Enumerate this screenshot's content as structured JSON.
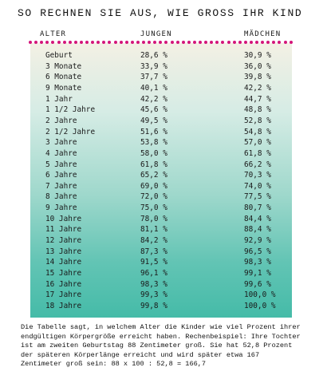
{
  "title": "SO RECHNEN SIE AUS, WIE GROSS IHR KIND",
  "headers": {
    "age": "ALTER",
    "boys": "JUNGEN",
    "girls": "MÄDCHEN"
  },
  "accent_color": "#d4157a",
  "rows": [
    {
      "age": "Geburt",
      "boys": "28,6 %",
      "girls": "30,9 %"
    },
    {
      "age": "3 Monate",
      "boys": "33,9 %",
      "girls": "36,0 %"
    },
    {
      "age": "6 Monate",
      "boys": "37,7 %",
      "girls": "39,8 %"
    },
    {
      "age": "9 Monate",
      "boys": "40,1 %",
      "girls": "42,2 %"
    },
    {
      "age": "1 Jahr",
      "boys": "42,2 %",
      "girls": "44,7 %"
    },
    {
      "age": "1 1/2 Jahre",
      "boys": "45,6 %",
      "girls": "48,8 %"
    },
    {
      "age": "2 Jahre",
      "boys": "49,5 %",
      "girls": "52,8 %"
    },
    {
      "age": "2 1/2 Jahre",
      "boys": "51,6 %",
      "girls": "54,8 %"
    },
    {
      "age": "3 Jahre",
      "boys": "53,8 %",
      "girls": "57,0 %"
    },
    {
      "age": "4 Jahre",
      "boys": "58,0 %",
      "girls": "61,8 %"
    },
    {
      "age": "5 Jahre",
      "boys": "61,8 %",
      "girls": "66,2 %"
    },
    {
      "age": "6 Jahre",
      "boys": "65,2 %",
      "girls": "70,3 %"
    },
    {
      "age": "7 Jahre",
      "boys": "69,0 %",
      "girls": "74,0 %"
    },
    {
      "age": "8 Jahre",
      "boys": "72,0 %",
      "girls": "77,5 %"
    },
    {
      "age": "9 Jahre",
      "boys": "75,0 %",
      "girls": "80,7 %"
    },
    {
      "age": "10 Jahre",
      "boys": "78,0 %",
      "girls": "84,4 %"
    },
    {
      "age": "11 Jahre",
      "boys": "81,1 %",
      "girls": "88,4 %"
    },
    {
      "age": "12 Jahre",
      "boys": "84,2 %",
      "girls": "92,9 %"
    },
    {
      "age": "13 Jahre",
      "boys": "87,3 %",
      "girls": "96,5 %"
    },
    {
      "age": "14 Jahre",
      "boys": "91,5 %",
      "girls": "98,3 %"
    },
    {
      "age": "15 Jahre",
      "boys": "96,1 %",
      "girls": "99,1 %"
    },
    {
      "age": "16 Jahre",
      "boys": "98,3 %",
      "girls": "99,6 %"
    },
    {
      "age": "17 Jahre",
      "boys": "99,3 %",
      "girls": "100,0 %"
    },
    {
      "age": "18 Jahre",
      "boys": "99,8 %",
      "girls": "100,0 %"
    }
  ],
  "footnote": [
    "Die Tabelle sagt, in welchem Alter die Kinder wie viel Prozent ihrer",
    "endgültigen Körpergröße erreicht haben. Rechenbeispiel: Ihre Tochter",
    "ist am zweiten Geburtstag 88 Zentimeter groß. Sie hat 52,8 Prozent",
    "der späteren Körperlänge erreicht und wird später etwa 167",
    "Zentimeter groß sein: 88 x 100 : 52,8 = 166,7"
  ]
}
